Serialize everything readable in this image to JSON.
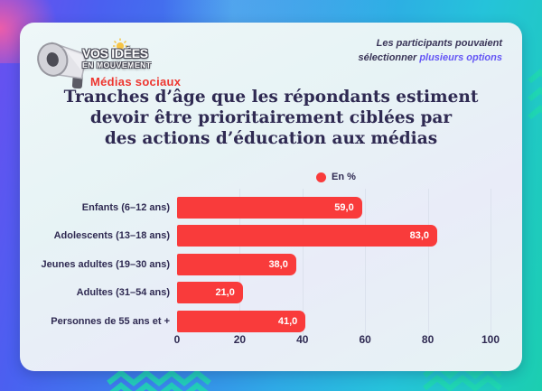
{
  "logo": {
    "line1": "VOS IDÉES",
    "line2": "EN MOUVEMENT",
    "subtitle": "Médias sociaux",
    "megaphone_icon": "megaphone-icon",
    "bulb_icon": "lightbulb-icon"
  },
  "note": {
    "line1": "Les participants pouvaient",
    "line2_prefix": "sélectionner ",
    "line2_highlight": "plusieurs options",
    "highlight_color": "#6456f5"
  },
  "title": {
    "lines": [
      "Tranches d’âge que les répondants estiment",
      "devoir être prioritairement ciblées par",
      "des actions d’éducation aux médias"
    ]
  },
  "legend": {
    "label": "En %",
    "marker_color": "#f93b3b"
  },
  "colors": {
    "bar": "#f93b3b",
    "title_text": "#2f2a52",
    "card_background": "#eaf4f6",
    "subtitle_red": "#ee362f"
  },
  "chart_data": {
    "type": "bar",
    "orientation": "horizontal",
    "title": "Tranches d’âge que les répondants estiment devoir être prioritairement ciblées par des actions d’éducation aux médias",
    "legend": [
      "En %"
    ],
    "legend_position": "top-center",
    "grid": true,
    "categories": [
      "Enfants (6–12 ans)",
      "Adolescents (13–18 ans)",
      "Jeunes adultes (19–30 ans)",
      "Adultes (31–54 ans)",
      "Personnes de 55 ans et +"
    ],
    "values": [
      59.0,
      83.0,
      38.0,
      21.0,
      41.0
    ],
    "value_labels": [
      "59,0",
      "83,0",
      "38,0",
      "21,0",
      "41,0"
    ],
    "xlabel": "",
    "ylabel": "",
    "xlim": [
      0,
      100
    ],
    "xticks": [
      0,
      20,
      40,
      60,
      80,
      100
    ]
  }
}
